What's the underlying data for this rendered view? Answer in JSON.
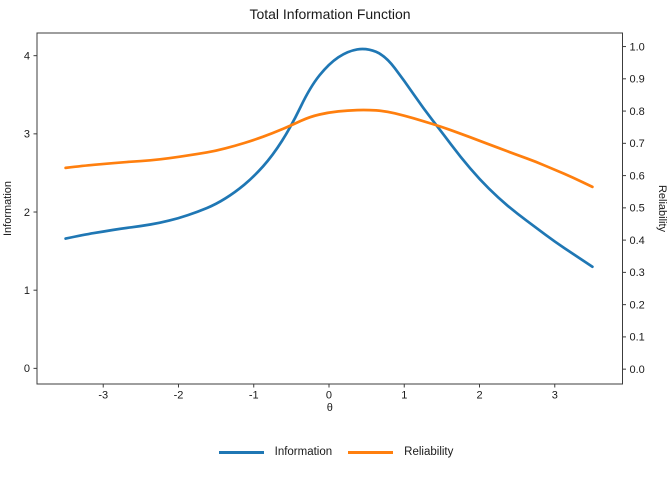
{
  "title": "Total Information Function",
  "axes": {
    "x": {
      "label": "θ",
      "tick_labels": [
        "-3",
        "-2",
        "-1",
        "0",
        "1",
        "2",
        "3"
      ],
      "tick_values": [
        -3,
        -2,
        -1,
        0,
        1,
        2,
        3
      ],
      "lim": [
        -3.88,
        3.9
      ]
    },
    "y_left": {
      "label": "Information",
      "tick_labels": [
        "0",
        "1",
        "2",
        "3",
        "4"
      ],
      "tick_values": [
        0,
        1,
        2,
        3,
        4
      ],
      "lim": [
        -0.2,
        4.29
      ]
    },
    "y_right": {
      "label": "Reliability",
      "tick_labels": [
        "0.0",
        "0.1",
        "0.2",
        "0.3",
        "0.4",
        "0.5",
        "0.6",
        "0.7",
        "0.8",
        "0.9",
        "1.0"
      ],
      "tick_values": [
        0,
        0.1,
        0.2,
        0.3,
        0.4,
        0.5,
        0.6,
        0.7,
        0.8,
        0.9,
        1.0
      ],
      "lim": [
        -0.046,
        1.042
      ]
    }
  },
  "colors": {
    "information": "#1f77b4",
    "reliability": "#ff7f0e",
    "spine": "#3c3c3c",
    "text": "#1a1a1a"
  },
  "legend": {
    "items": [
      {
        "label": "Information",
        "color": "#1f77b4"
      },
      {
        "label": "Reliability",
        "color": "#ff7f0e"
      }
    ],
    "position": "bottom"
  },
  "chart_data": {
    "type": "line",
    "title": "Total Information Function",
    "xlabel": "θ",
    "ylabel_left": "Information",
    "ylabel_right": "Reliability",
    "grid": false,
    "legend_position": "bottom",
    "xlim": [
      -3.88,
      3.9
    ],
    "ylim_left": [
      -0.2,
      4.29
    ],
    "ylim_right": [
      -0.046,
      1.042
    ],
    "x": [
      -3.5,
      -3.25,
      -3.0,
      -2.75,
      -2.5,
      -2.25,
      -2.0,
      -1.75,
      -1.5,
      -1.25,
      -1.0,
      -0.75,
      -0.5,
      -0.25,
      0.0,
      0.25,
      0.5,
      0.75,
      1.0,
      1.25,
      1.5,
      1.75,
      2.0,
      2.25,
      2.5,
      2.75,
      3.0,
      3.25,
      3.5
    ],
    "series": [
      {
        "name": "Information",
        "axis": "left",
        "color": "#1f77b4",
        "values": [
          1.66,
          1.71,
          1.75,
          1.79,
          1.82,
          1.86,
          1.92,
          2.0,
          2.1,
          2.25,
          2.45,
          2.72,
          3.1,
          3.6,
          3.9,
          4.06,
          4.1,
          4.0,
          3.68,
          3.33,
          3.02,
          2.7,
          2.42,
          2.18,
          1.98,
          1.8,
          1.62,
          1.46,
          1.3
        ]
      },
      {
        "name": "Reliability",
        "axis": "right",
        "color": "#ff7f0e",
        "values": [
          0.624,
          0.631,
          0.636,
          0.641,
          0.645,
          0.65,
          0.658,
          0.667,
          0.677,
          0.692,
          0.71,
          0.731,
          0.756,
          0.783,
          0.796,
          0.802,
          0.804,
          0.8,
          0.786,
          0.769,
          0.751,
          0.73,
          0.708,
          0.686,
          0.664,
          0.643,
          0.618,
          0.593,
          0.565
        ]
      }
    ]
  }
}
